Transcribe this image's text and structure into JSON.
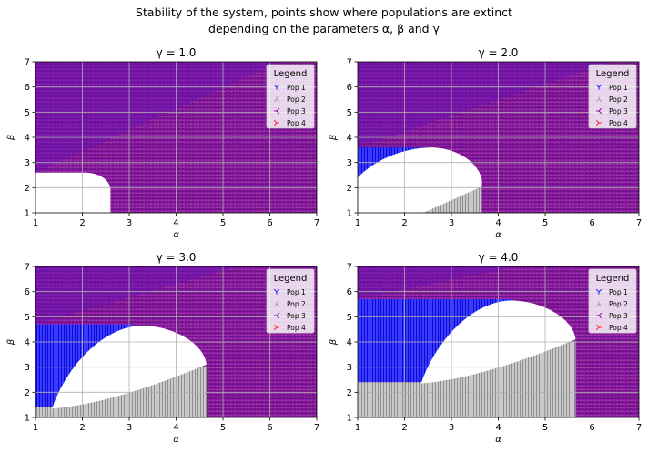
{
  "figure": {
    "suptitle_line1": "Stability of the system, points show where populations are extinct",
    "suptitle_line2": "depending on the parameters α, β and γ"
  },
  "legend": {
    "title": "Legend",
    "entries": [
      {
        "label": "Pop 1",
        "marker": "tri_down",
        "color": "#1f1fff"
      },
      {
        "label": "Pop 2",
        "marker": "tri_up",
        "color": "#9e9e9e"
      },
      {
        "label": "Pop 3",
        "marker": "tri_left",
        "color": "#7a00a8"
      },
      {
        "label": "Pop 4",
        "marker": "tri_right",
        "color": "#ff1a1a"
      }
    ]
  },
  "chart_data": [
    {
      "type": "scatter",
      "title": "γ = 1.0",
      "gamma": 1.0,
      "xlabel": "α",
      "ylabel": "β",
      "xlim": [
        1,
        7
      ],
      "ylim": [
        1,
        7
      ],
      "xticks": [
        "1",
        "2",
        "3",
        "4",
        "5",
        "6",
        "7"
      ],
      "yticks": [
        "1",
        "2",
        "3",
        "4",
        "5",
        "6",
        "7"
      ],
      "grid": true,
      "legend_loc": "upper right",
      "regions": {
        "stable_white": {
          "alpha_max": 2.6,
          "beta_max": 2.6
        },
        "pop1_only": null,
        "pop2_only": null,
        "pop1_pop3_boundary": "β > 2.6 + 0.8·(α − 1)"
      }
    },
    {
      "type": "scatter",
      "title": "γ = 2.0",
      "gamma": 2.0,
      "xlabel": "α",
      "ylabel": "β",
      "xlim": [
        1,
        7
      ],
      "ylim": [
        1,
        7
      ],
      "xticks": [
        "1",
        "2",
        "3",
        "4",
        "5",
        "6",
        "7"
      ],
      "yticks": [
        "1",
        "2",
        "3",
        "4",
        "5",
        "6",
        "7"
      ],
      "grid": true,
      "legend_loc": "upper right",
      "regions": {
        "stable_white": {
          "alpha_max": 3.65,
          "beta_max": 3.6
        },
        "pop1_only": {
          "alpha_max": 1.6,
          "beta_range": [
            2.4,
            3.6
          ]
        },
        "pop2_only": {
          "alpha_range": [
            2.4,
            3.65
          ],
          "beta_max": 2.0
        }
      }
    },
    {
      "type": "scatter",
      "title": "γ = 3.0",
      "gamma": 3.0,
      "xlabel": "α",
      "ylabel": "β",
      "xlim": [
        1,
        7
      ],
      "ylim": [
        1,
        7
      ],
      "xticks": [
        "1",
        "2",
        "3",
        "4",
        "5",
        "6",
        "7"
      ],
      "yticks": [
        "1",
        "2",
        "3",
        "4",
        "5",
        "6",
        "7"
      ],
      "grid": true,
      "legend_loc": "upper right",
      "regions": {
        "stable_white": {
          "alpha_range": [
            1.35,
            4.65
          ],
          "beta_max": 4.65
        },
        "pop1_only": {
          "alpha_max": 3.1,
          "beta_range": [
            1.4,
            4.7
          ]
        },
        "pop2_only": {
          "alpha_range": [
            1.35,
            4.65
          ],
          "beta_max": 3.0
        }
      }
    },
    {
      "type": "scatter",
      "title": "γ = 4.0",
      "gamma": 4.0,
      "xlabel": "α",
      "ylabel": "β",
      "xlim": [
        1,
        7
      ],
      "ylim": [
        1,
        7
      ],
      "xticks": [
        "1",
        "2",
        "3",
        "4",
        "5",
        "6",
        "7"
      ],
      "yticks": [
        "1",
        "2",
        "3",
        "4",
        "5",
        "6",
        "7"
      ],
      "grid": true,
      "legend_loc": "upper right",
      "regions": {
        "stable_white": {
          "alpha_range": [
            2.35,
            5.65
          ],
          "beta_max": 5.65
        },
        "pop1_only": {
          "alpha_max": 4.3,
          "beta_range": [
            2.4,
            5.7
          ]
        },
        "pop2_only": {
          "alpha_range": [
            1.0,
            5.65
          ],
          "beta_max": 4.0
        }
      }
    }
  ]
}
